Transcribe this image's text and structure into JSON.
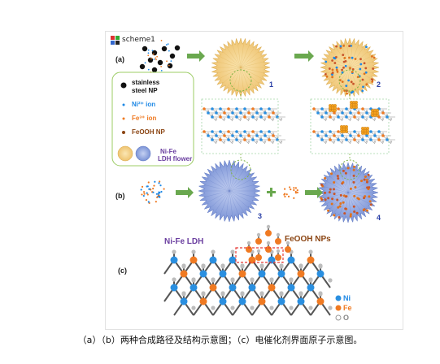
{
  "window": {
    "title": "scheme1"
  },
  "panels": {
    "a": "(a)",
    "b": "(b)",
    "c": "(c)"
  },
  "steps": {
    "s1": "1",
    "s2": "2",
    "s3": "3",
    "s4": "4"
  },
  "legend": {
    "stainless": "stainless",
    "steel_np": "steel NP",
    "ni_ion": "Ni²⁺ ion",
    "fe_ion": "Fe³⁺ ion",
    "feooh_np": "FeOOH NP",
    "nife": "Ni-Fe",
    "ldh_flower": "LDH flower"
  },
  "panel_c": {
    "nife_ldh": "Ni-Fe LDH",
    "feooh_nps": "FeOOH NPs",
    "key_ni": "Ni",
    "key_fe": "Fe",
    "key_o": "O"
  },
  "colors": {
    "ni": "#2a8fe0",
    "fe": "#f07a22",
    "o": "#bdbdbd",
    "flower_yellow": "#f2cf7e",
    "flower_blue": "#8aa2de",
    "arrow": "#6aa84f",
    "label_purple": "#6b3fa0",
    "label_brown": "#8b4513"
  },
  "caption": "（a）（b）两种合成路径及结构示意图；（c）电催化剂界面原子示意图。"
}
